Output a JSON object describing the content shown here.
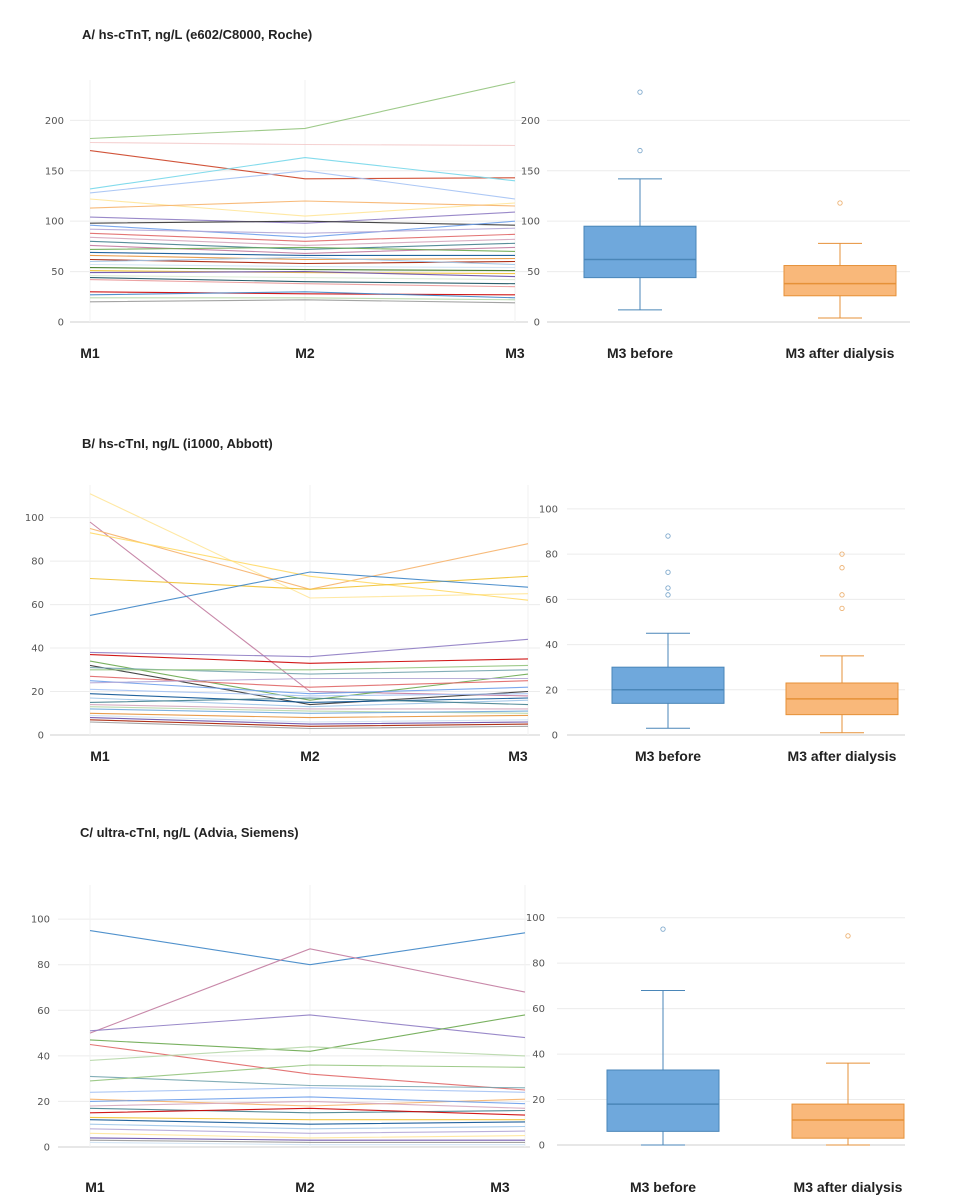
{
  "panels": [
    {
      "title": "A/ hs-cTnT, ng/L (e602/C8000, Roche)"
    },
    {
      "title": "B/ hs-cTnI, ng/L (i1000, Abbott)"
    },
    {
      "title": "C/ ultra-cTnI, ng/L (Advia, Siemens)"
    }
  ],
  "colors": {
    "before_fill": "#6fa8dc",
    "before_stroke": "#4a86b8",
    "after_fill": "#f9b87a",
    "after_stroke": "#e69138",
    "grid": "#ececec"
  },
  "chart_data": [
    {
      "type": "line",
      "panel": "A",
      "categories": [
        "M1",
        "M2",
        "M3"
      ],
      "ylim": [
        0,
        240
      ],
      "yticks": [
        0,
        50,
        100,
        150,
        200
      ],
      "series": [
        {
          "values": [
            182,
            192,
            238
          ],
          "color": "#93c47d"
        },
        {
          "values": [
            178,
            176,
            175
          ],
          "color": "#f4cccc"
        },
        {
          "values": [
            170,
            142,
            143
          ],
          "color": "#cc4125"
        },
        {
          "values": [
            132,
            163,
            140
          ],
          "color": "#76d7ea"
        },
        {
          "values": [
            128,
            150,
            122
          ],
          "color": "#a4c2f4"
        },
        {
          "values": [
            122,
            105,
            118
          ],
          "color": "#ffe599"
        },
        {
          "values": [
            113,
            120,
            115
          ],
          "color": "#f6b26b"
        },
        {
          "values": [
            104,
            98,
            109
          ],
          "color": "#8e7cc3"
        },
        {
          "values": [
            98,
            100,
            96
          ],
          "color": "#333333"
        },
        {
          "values": [
            96,
            84,
            100
          ],
          "color": "#6d9eeb"
        },
        {
          "values": [
            92,
            88,
            93
          ],
          "color": "#b4a7d6"
        },
        {
          "values": [
            88,
            80,
            87
          ],
          "color": "#e06666"
        },
        {
          "values": [
            84,
            76,
            82
          ],
          "color": "#d5a6bd"
        },
        {
          "values": [
            80,
            72,
            78
          ],
          "color": "#45818e"
        },
        {
          "values": [
            76,
            68,
            74
          ],
          "color": "#c27ba0"
        },
        {
          "values": [
            72,
            74,
            70
          ],
          "color": "#6aa84f"
        },
        {
          "values": [
            69,
            66,
            66
          ],
          "color": "#0b5394"
        },
        {
          "values": [
            66,
            62,
            63
          ],
          "color": "#e69138"
        },
        {
          "values": [
            62,
            58,
            60
          ],
          "color": "#a61c00"
        },
        {
          "values": [
            60,
            64,
            57
          ],
          "color": "#9fc5e8"
        },
        {
          "values": [
            57,
            55,
            54
          ],
          "color": "#cfe2f3"
        },
        {
          "values": [
            54,
            52,
            51
          ],
          "color": "#38761d"
        },
        {
          "values": [
            51,
            49,
            48
          ],
          "color": "#f1c232"
        },
        {
          "values": [
            49,
            50,
            45
          ],
          "color": "#674ea7"
        },
        {
          "values": [
            46,
            44,
            42
          ],
          "color": "#d9ead3"
        },
        {
          "values": [
            44,
            40,
            38
          ],
          "color": "#134f5c"
        },
        {
          "values": [
            42,
            38,
            35
          ],
          "color": "#ea9999"
        },
        {
          "values": [
            30,
            28,
            27
          ],
          "color": "#cc0000"
        },
        {
          "values": [
            27,
            30,
            24
          ],
          "color": "#3d85c6"
        },
        {
          "values": [
            24,
            24,
            22
          ],
          "color": "#b6d7a8"
        },
        {
          "values": [
            20,
            22,
            19
          ],
          "color": "#999999"
        }
      ]
    },
    {
      "type": "box",
      "panel": "A",
      "categories": [
        "M3 before",
        "M3 after dialysis"
      ],
      "ylim": [
        0,
        240
      ],
      "yticks": [
        0,
        50,
        100,
        150,
        200
      ],
      "boxes": [
        {
          "min": 12,
          "q1": 44,
          "median": 62,
          "q3": 95,
          "max": 142,
          "outliers": [
            170,
            228
          ]
        },
        {
          "min": 4,
          "q1": 26,
          "median": 38,
          "q3": 56,
          "max": 78,
          "outliers": [
            118
          ]
        }
      ]
    },
    {
      "type": "line",
      "panel": "B",
      "categories": [
        "M1",
        "M2",
        "M3"
      ],
      "ylim": [
        0,
        115
      ],
      "yticks": [
        0,
        20,
        40,
        60,
        80,
        100
      ],
      "series": [
        {
          "values": [
            111,
            63,
            65
          ],
          "color": "#ffe599"
        },
        {
          "values": [
            98,
            20,
            18
          ],
          "color": "#c27ba0"
        },
        {
          "values": [
            95,
            67,
            88
          ],
          "color": "#f6b26b"
        },
        {
          "values": [
            93,
            73,
            62
          ],
          "color": "#ffd966"
        },
        {
          "values": [
            72,
            67,
            73
          ],
          "color": "#f1c232"
        },
        {
          "values": [
            55,
            75,
            68
          ],
          "color": "#3d85c6"
        },
        {
          "values": [
            38,
            36,
            44
          ],
          "color": "#8e7cc3"
        },
        {
          "values": [
            37,
            33,
            35
          ],
          "color": "#cc0000"
        },
        {
          "values": [
            34,
            16,
            28
          ],
          "color": "#6aa84f"
        },
        {
          "values": [
            32,
            14,
            20
          ],
          "color": "#333333"
        },
        {
          "values": [
            31,
            28,
            30
          ],
          "color": "#76a5af"
        },
        {
          "values": [
            30,
            30,
            32
          ],
          "color": "#93c47d"
        },
        {
          "values": [
            27,
            22,
            25
          ],
          "color": "#e06666"
        },
        {
          "values": [
            25,
            19,
            22
          ],
          "color": "#6d9eeb"
        },
        {
          "values": [
            24,
            26,
            26
          ],
          "color": "#b4a7d6"
        },
        {
          "values": [
            21,
            18,
            19
          ],
          "color": "#a4c2f4"
        },
        {
          "values": [
            19,
            15,
            17
          ],
          "color": "#0b5394"
        },
        {
          "values": [
            17,
            13,
            16
          ],
          "color": "#9fc5e8"
        },
        {
          "values": [
            15,
            17,
            14
          ],
          "color": "#45818e"
        },
        {
          "values": [
            14,
            12,
            12
          ],
          "color": "#d5a6bd"
        },
        {
          "values": [
            13,
            11,
            10
          ],
          "color": "#b6d7a8"
        },
        {
          "values": [
            12,
            10,
            11
          ],
          "color": "#6fa8dc"
        },
        {
          "values": [
            10,
            8,
            9
          ],
          "color": "#e69138"
        },
        {
          "values": [
            9,
            6,
            7
          ],
          "color": "#cfe2f3"
        },
        {
          "values": [
            8,
            5,
            6
          ],
          "color": "#674ea7"
        },
        {
          "values": [
            7,
            4,
            5
          ],
          "color": "#a61c00"
        },
        {
          "values": [
            6,
            3,
            4
          ],
          "color": "#999999"
        }
      ]
    },
    {
      "type": "box",
      "panel": "B",
      "categories": [
        "M3 before",
        "M3 after dialysis"
      ],
      "ylim": [
        0,
        115
      ],
      "yticks": [
        0,
        20,
        40,
        60,
        80,
        100
      ],
      "boxes": [
        {
          "min": 3,
          "q1": 14,
          "median": 20,
          "q3": 30,
          "max": 45,
          "outliers": [
            62,
            65,
            72,
            88
          ]
        },
        {
          "min": 1,
          "q1": 9,
          "median": 16,
          "q3": 23,
          "max": 35,
          "outliers": [
            56,
            62,
            74,
            80
          ]
        }
      ]
    },
    {
      "type": "line",
      "panel": "C",
      "categories": [
        "M1",
        "M2",
        "M3"
      ],
      "ylim": [
        0,
        115
      ],
      "yticks": [
        0,
        20,
        40,
        60,
        80,
        100
      ],
      "series": [
        {
          "values": [
            95,
            80,
            94
          ],
          "color": "#3d85c6"
        },
        {
          "values": [
            50,
            87,
            68
          ],
          "color": "#c27ba0"
        },
        {
          "values": [
            51,
            58,
            48
          ],
          "color": "#8e7cc3"
        },
        {
          "values": [
            47,
            42,
            58
          ],
          "color": "#6aa84f"
        },
        {
          "values": [
            45,
            32,
            25
          ],
          "color": "#e06666"
        },
        {
          "values": [
            38,
            44,
            40
          ],
          "color": "#b6d7a8"
        },
        {
          "values": [
            31,
            27,
            26
          ],
          "color": "#76a5af"
        },
        {
          "values": [
            29,
            36,
            35
          ],
          "color": "#93c47d"
        },
        {
          "values": [
            24,
            26,
            24
          ],
          "color": "#a4c2f4"
        },
        {
          "values": [
            21,
            18,
            21
          ],
          "color": "#f6b26b"
        },
        {
          "values": [
            20,
            22,
            19
          ],
          "color": "#6d9eeb"
        },
        {
          "values": [
            18,
            20,
            17
          ],
          "color": "#d5a6bd"
        },
        {
          "values": [
            17,
            15,
            16
          ],
          "color": "#45818e"
        },
        {
          "values": [
            15,
            17,
            14
          ],
          "color": "#cc0000"
        },
        {
          "values": [
            13,
            12,
            12
          ],
          "color": "#f1c232"
        },
        {
          "values": [
            12,
            10,
            11
          ],
          "color": "#0b5394"
        },
        {
          "values": [
            10,
            8,
            9
          ],
          "color": "#9fc5e8"
        },
        {
          "values": [
            8,
            6,
            7
          ],
          "color": "#b4a7d6"
        },
        {
          "values": [
            6,
            4,
            5
          ],
          "color": "#ffe599"
        },
        {
          "values": [
            4,
            3,
            3
          ],
          "color": "#674ea7"
        },
        {
          "values": [
            3,
            2,
            2
          ],
          "color": "#999999"
        },
        {
          "values": [
            2,
            1,
            1
          ],
          "color": "#cfe2f3"
        }
      ]
    },
    {
      "type": "box",
      "panel": "C",
      "categories": [
        "M3 before",
        "M3 after dialysis"
      ],
      "ylim": [
        0,
        110
      ],
      "yticks": [
        0,
        20,
        40,
        60,
        80,
        100
      ],
      "boxes": [
        {
          "min": 0,
          "q1": 6,
          "median": 18,
          "q3": 33,
          "max": 68,
          "outliers": [
            95
          ]
        },
        {
          "min": 0,
          "q1": 3,
          "median": 11,
          "q3": 18,
          "max": 36,
          "outliers": [
            92
          ]
        }
      ]
    }
  ]
}
